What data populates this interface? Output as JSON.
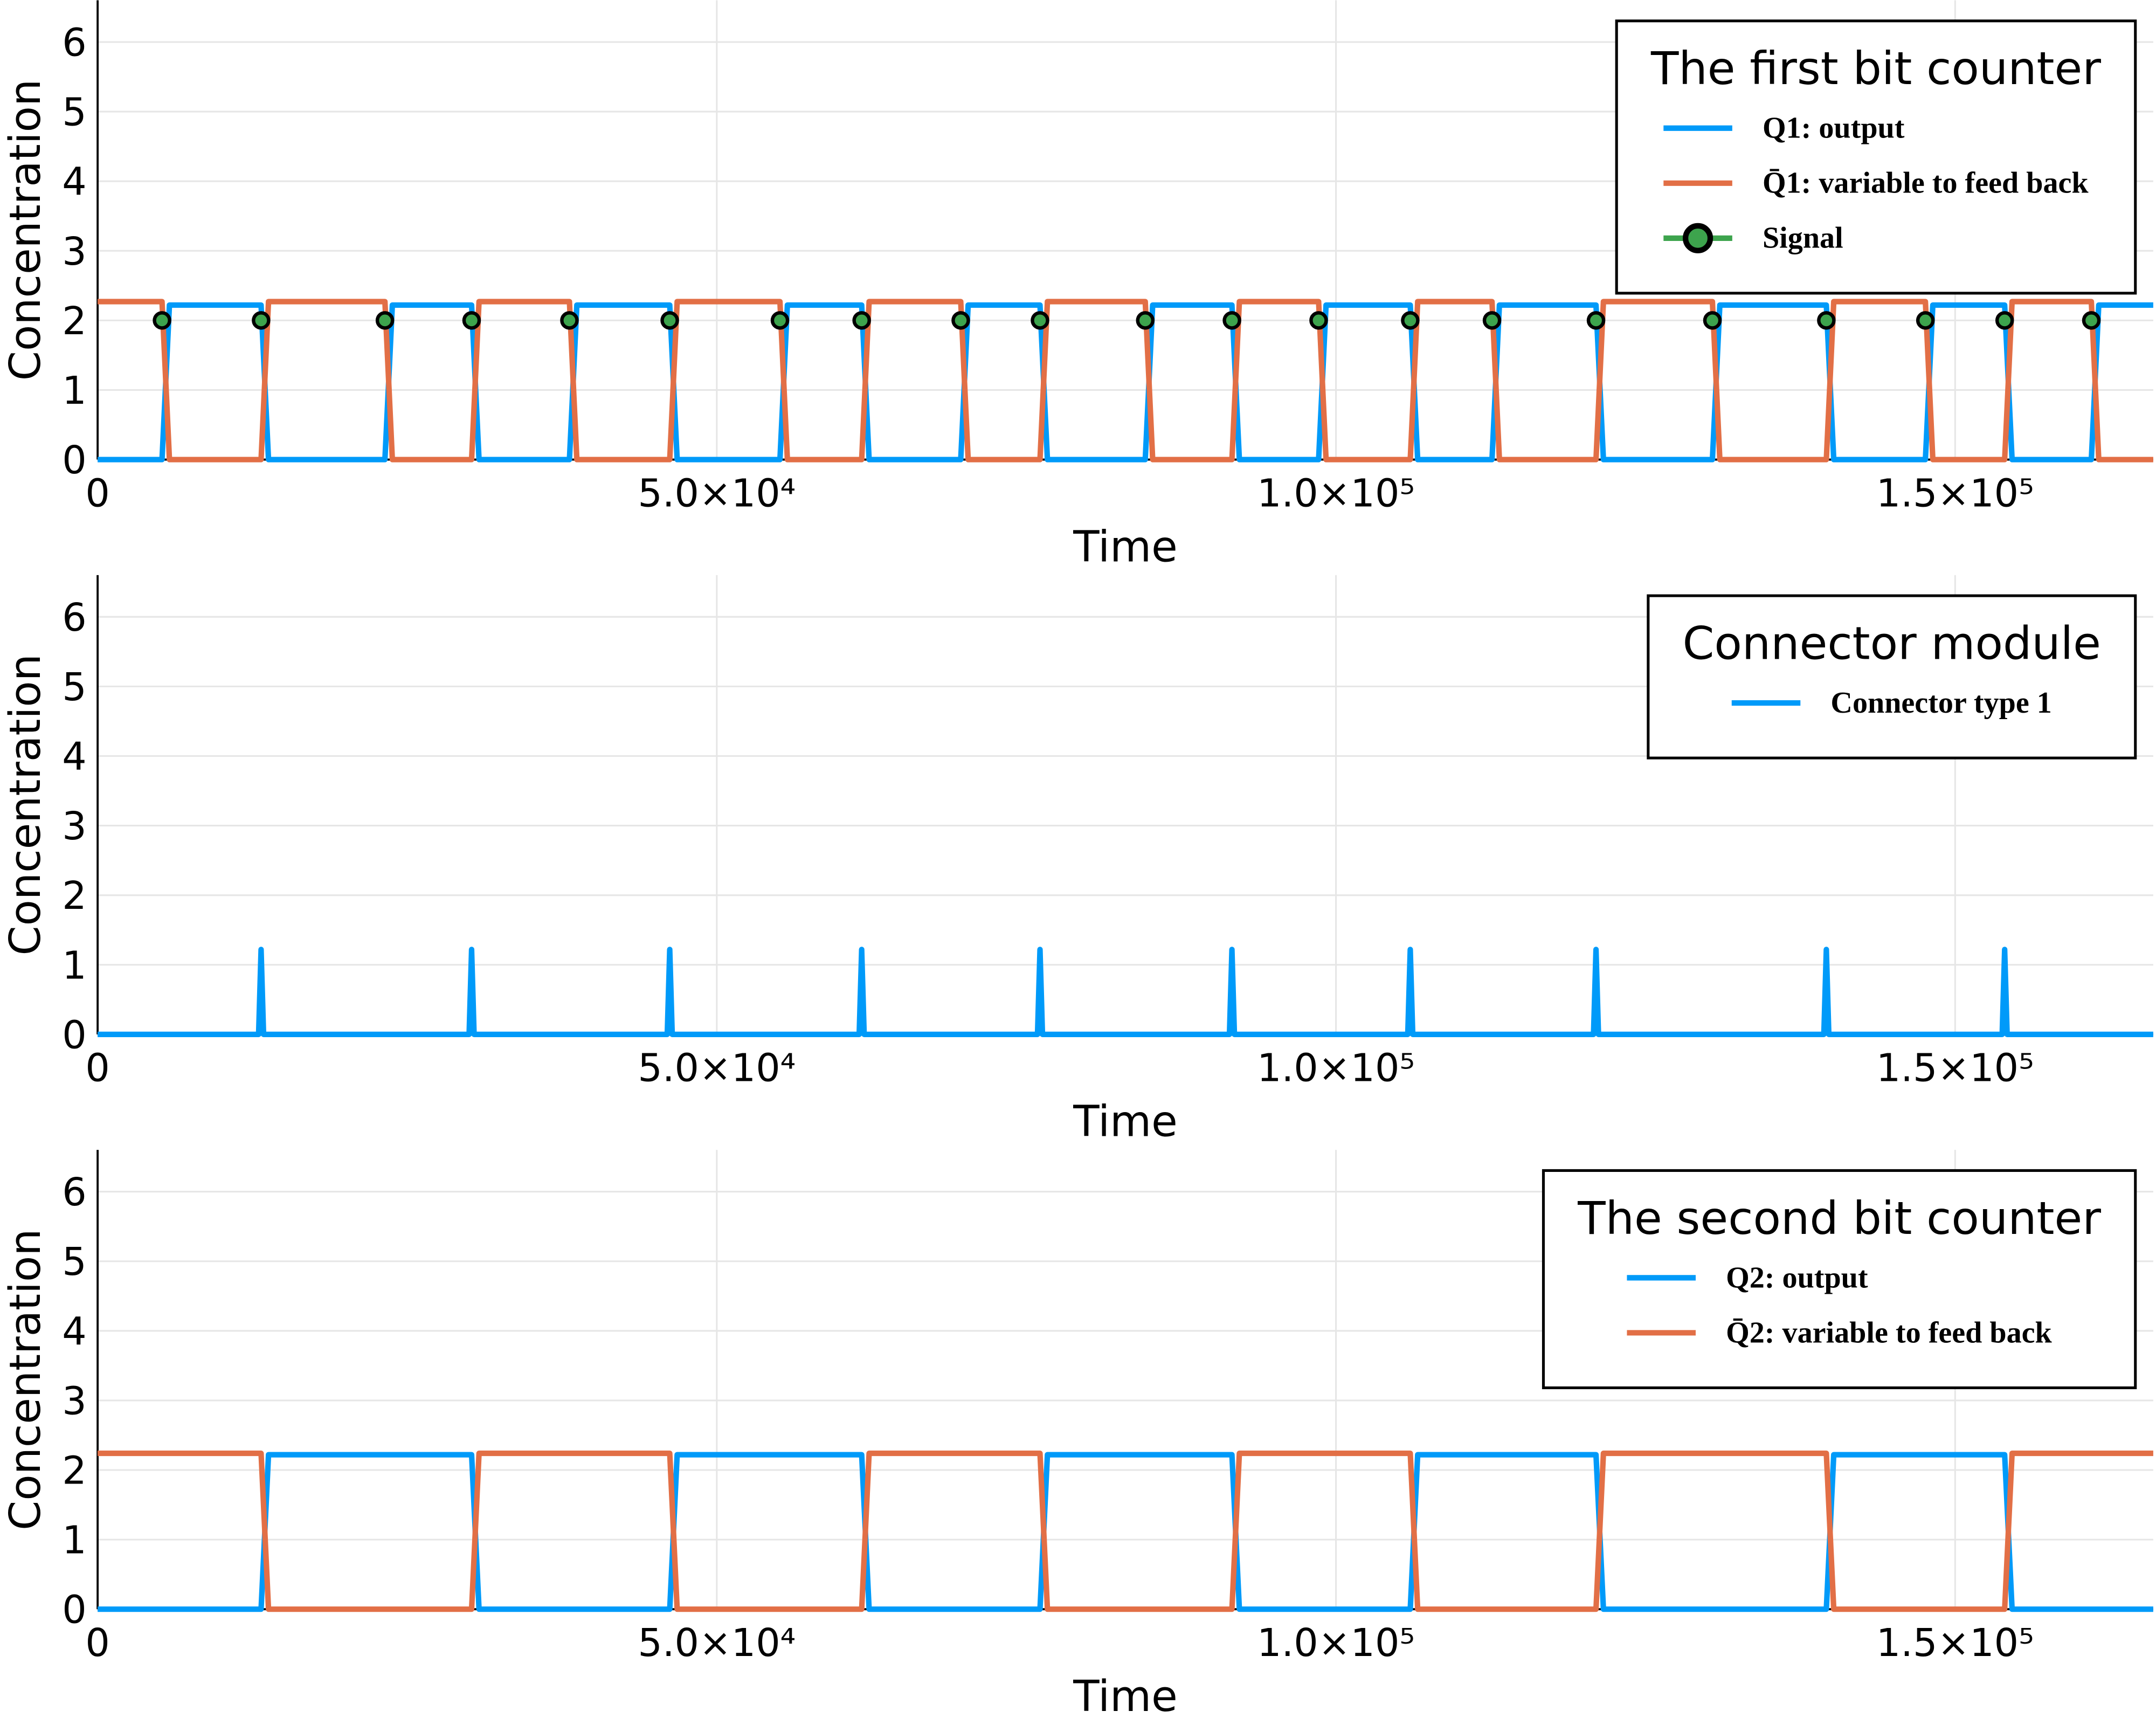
{
  "chart_data": [
    {
      "type": "line",
      "xlabel": "Time",
      "ylabel": "Concentration",
      "legend_title": "The first bit counter",
      "legend": "top right",
      "grid": true,
      "xlim": [
        0,
        166000
      ],
      "ylim": [
        0,
        6.6
      ],
      "xticks": [
        0,
        {
          "value": 50000,
          "label": "5.0×10⁴"
        },
        {
          "value": 100000,
          "label": "1.0×10⁵"
        },
        {
          "value": 150000,
          "label": "1.5×10⁵"
        }
      ],
      "yticks": [
        0,
        1,
        2,
        3,
        4,
        5,
        6
      ],
      "x": [
        0,
        5200,
        5800,
        13200,
        13800,
        23200,
        23800,
        30200,
        30800,
        38100,
        38700,
        46200,
        46800,
        55100,
        55700,
        61700,
        62300,
        69700,
        70300,
        76100,
        76700,
        84600,
        85200,
        91600,
        92200,
        98600,
        99200,
        106000,
        106600,
        112600,
        113200,
        121000,
        121600,
        130400,
        131000,
        139600,
        140200,
        147600,
        148200,
        154000,
        154600,
        161000,
        161600,
        166000
      ],
      "series": [
        {
          "name": "Q1: output",
          "color": "#009af9",
          "values": [
            0,
            0,
            2.22,
            2.22,
            0,
            0,
            2.22,
            2.22,
            0,
            0,
            2.22,
            2.22,
            0,
            0,
            2.22,
            2.22,
            0,
            0,
            2.22,
            2.22,
            0,
            0,
            2.22,
            2.22,
            0,
            0,
            2.22,
            2.22,
            0,
            0,
            2.22,
            2.22,
            0,
            0,
            2.22,
            2.22,
            0,
            0,
            2.22,
            2.22,
            0,
            0,
            2.22,
            2.22
          ]
        },
        {
          "name": "Q̄1: variable to feed back",
          "color": "#e26f46",
          "values": [
            2.27,
            2.27,
            0,
            0,
            2.27,
            2.27,
            0,
            0,
            2.27,
            2.27,
            0,
            0,
            2.27,
            2.27,
            0,
            0,
            2.27,
            2.27,
            0,
            0,
            2.27,
            2.27,
            0,
            0,
            2.27,
            2.27,
            0,
            0,
            2.27,
            2.27,
            0,
            0,
            2.27,
            2.27,
            0,
            0,
            2.27,
            2.27,
            0,
            0,
            2.27,
            2.27,
            0,
            0
          ]
        },
        {
          "name": "Signal",
          "color": "#3da44d",
          "marker": true,
          "x": [
            5200,
            13200,
            23200,
            30200,
            38100,
            46200,
            55100,
            61700,
            69700,
            76100,
            84600,
            91600,
            98600,
            106000,
            112600,
            121000,
            130400,
            139600,
            147600,
            154000,
            161000
          ],
          "values": [
            2,
            2,
            2,
            2,
            2,
            2,
            2,
            2,
            2,
            2,
            2,
            2,
            2,
            2,
            2,
            2,
            2,
            2,
            2,
            2,
            2
          ]
        }
      ]
    },
    {
      "type": "line",
      "xlabel": "Time",
      "ylabel": "Concentration",
      "legend_title": "Connector module",
      "legend": "top right",
      "grid": true,
      "xlim": [
        0,
        166000
      ],
      "ylim": [
        0,
        6.6
      ],
      "xticks": [
        0,
        {
          "value": 50000,
          "label": "5.0×10⁴"
        },
        {
          "value": 100000,
          "label": "1.0×10⁵"
        },
        {
          "value": 150000,
          "label": "1.5×10⁵"
        }
      ],
      "yticks": [
        0,
        1,
        2,
        3,
        4,
        5,
        6
      ],
      "x": [
        0,
        13000,
        13200,
        13400,
        30000,
        30200,
        30400,
        46000,
        46200,
        46400,
        61500,
        61700,
        61900,
        75900,
        76100,
        76300,
        91400,
        91600,
        91800,
        105800,
        106000,
        106200,
        120800,
        121000,
        121200,
        139400,
        139600,
        139800,
        153800,
        154000,
        154200,
        166000
      ],
      "series": [
        {
          "name": "Connector type 1",
          "color": "#009af9",
          "values": [
            0,
            0,
            1.22,
            0,
            0,
            1.22,
            0,
            0,
            1.22,
            0,
            0,
            1.22,
            0,
            0,
            1.22,
            0,
            0,
            1.22,
            0,
            0,
            1.22,
            0,
            0,
            1.22,
            0,
            0,
            1.22,
            0,
            0,
            1.22,
            0,
            0
          ]
        }
      ]
    },
    {
      "type": "line",
      "xlabel": "Time",
      "ylabel": "Concentration",
      "legend_title": "The second bit counter",
      "legend": "top right",
      "grid": true,
      "xlim": [
        0,
        166000
      ],
      "ylim": [
        0,
        6.6
      ],
      "xticks": [
        0,
        {
          "value": 50000,
          "label": "5.0×10⁴"
        },
        {
          "value": 100000,
          "label": "1.0×10⁵"
        },
        {
          "value": 150000,
          "label": "1.5×10⁵"
        }
      ],
      "yticks": [
        0,
        1,
        2,
        3,
        4,
        5,
        6
      ],
      "x": [
        0,
        13200,
        13800,
        30200,
        30800,
        46200,
        46800,
        61700,
        62300,
        76100,
        76700,
        91600,
        92200,
        106000,
        106600,
        121000,
        121600,
        139600,
        140200,
        154000,
        154600,
        166000
      ],
      "series": [
        {
          "name": "Q2: output",
          "color": "#009af9",
          "values": [
            0,
            0,
            2.22,
            2.22,
            0,
            0,
            2.22,
            2.22,
            0,
            0,
            2.22,
            2.22,
            0,
            0,
            2.22,
            2.22,
            0,
            0,
            2.22,
            2.22,
            0,
            0
          ]
        },
        {
          "name": "Q̄2: variable to feed back",
          "color": "#e26f46",
          "values": [
            2.24,
            2.24,
            0,
            0,
            2.24,
            2.24,
            0,
            0,
            2.24,
            2.24,
            0,
            0,
            2.24,
            2.24,
            0,
            0,
            2.24,
            2.24,
            0,
            0,
            2.24,
            2.24
          ]
        }
      ]
    }
  ]
}
